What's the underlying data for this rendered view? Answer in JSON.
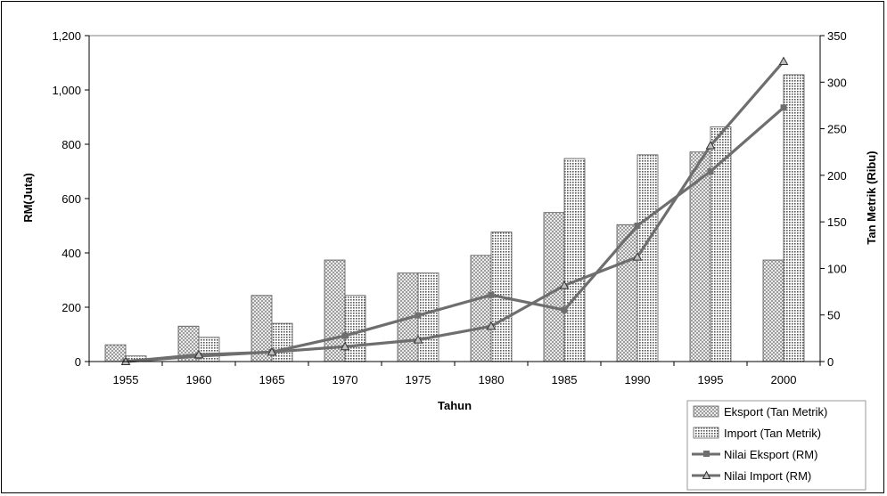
{
  "chart_data": {
    "type": "bar",
    "xlabel": "Tahun",
    "ylabel_left": "RM(Juta)",
    "ylabel_right": "Tan Metrik (Ribu)",
    "categories": [
      "1955",
      "1960",
      "1965",
      "1970",
      "1975",
      "1980",
      "1985",
      "1990",
      "1995",
      "2000"
    ],
    "y_left": {
      "min": 0,
      "max": 1200,
      "step": 200,
      "ticks": [
        "0",
        "200",
        "400",
        "600",
        "800",
        "1,000",
        "1,200"
      ]
    },
    "y_right": {
      "min": 0,
      "max": 350,
      "step": 50,
      "ticks": [
        "0",
        "50",
        "100",
        "150",
        "200",
        "250",
        "300",
        "350"
      ]
    },
    "series": [
      {
        "name": "Eksport (Tan Metrik)",
        "kind": "bar",
        "axis": "right",
        "pattern": "crosshatch",
        "values": [
          18,
          38,
          71,
          109,
          95,
          114,
          160,
          147,
          225,
          109
        ]
      },
      {
        "name": "Import (Tan Metrik)",
        "kind": "bar",
        "axis": "right",
        "pattern": "dots",
        "values": [
          6,
          26,
          41,
          71,
          95,
          139,
          218,
          222,
          252,
          308
        ]
      },
      {
        "name": "Nilai Eksport (RM)",
        "kind": "line",
        "axis": "left",
        "marker": "square",
        "color": "#6e6e6e",
        "values": [
          0,
          20,
          35,
          95,
          170,
          245,
          190,
          500,
          700,
          935
        ]
      },
      {
        "name": "Nilai Import (RM)",
        "kind": "line",
        "axis": "left",
        "marker": "triangle",
        "color": "#6e6e6e",
        "values": [
          0,
          25,
          35,
          55,
          80,
          130,
          280,
          385,
          795,
          1105
        ]
      }
    ],
    "legend": "bottom-right",
    "grid": false
  }
}
